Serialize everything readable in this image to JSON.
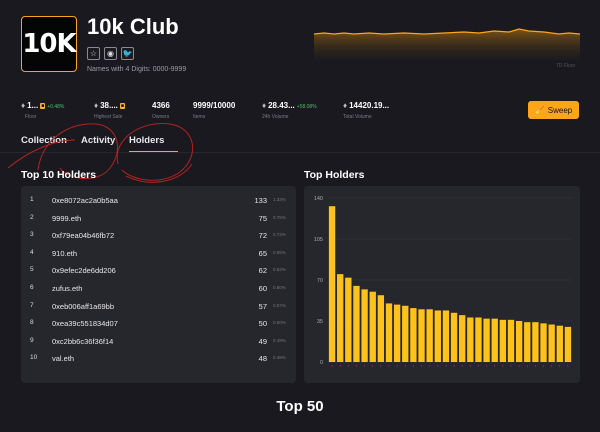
{
  "collection": {
    "logo_text": "10K",
    "title": "10k Club",
    "subtitle": "Names with 4 Digits: 0000-9999",
    "socials": [
      {
        "icon": "star-icon",
        "glyph": "☆"
      },
      {
        "icon": "discord-icon",
        "glyph": "◉"
      },
      {
        "icon": "twitter-icon",
        "glyph": "🐦"
      }
    ]
  },
  "header_chart": {
    "label": "7D Floor",
    "line_color": "#ffa51a"
  },
  "stats": [
    {
      "value": "1...",
      "label": "Floor",
      "change": "+0.48%",
      "icon": "eth-icon"
    },
    {
      "value": "38....",
      "label": "Highest Sale",
      "icon": "eth-icon"
    },
    {
      "value": "4366",
      "label": "Owners"
    },
    {
      "value": "9999/10000",
      "label": "Items"
    },
    {
      "value": "28.43...",
      "label": "24h Volume",
      "change": "+58.08%",
      "icon": "eth-icon"
    },
    {
      "value": "14420.19...",
      "label": "Total Volume",
      "icon": "eth-icon"
    }
  ],
  "sweep_label": "Sweep",
  "tabs": [
    "Collection",
    "Activity",
    "Holders"
  ],
  "active_tab": "Holders",
  "top_holders_title": "Top 10 Holders",
  "top_holders": [
    {
      "rank": "1",
      "address": "0xe8072ac2a0b5aa",
      "count": "133",
      "pct": "1.33%"
    },
    {
      "rank": "2",
      "address": "9999.eth",
      "count": "75",
      "pct": "0.75%"
    },
    {
      "rank": "3",
      "address": "0xf79ea04b46fb72",
      "count": "72",
      "pct": "0.72%"
    },
    {
      "rank": "4",
      "address": "910.eth",
      "count": "65",
      "pct": "0.65%"
    },
    {
      "rank": "5",
      "address": "0x9efec2de6dd206",
      "count": "62",
      "pct": "0.62%"
    },
    {
      "rank": "6",
      "address": "zufus.eth",
      "count": "60",
      "pct": "0.60%"
    },
    {
      "rank": "7",
      "address": "0xeb006aff1a69bb",
      "count": "57",
      "pct": "0.57%"
    },
    {
      "rank": "8",
      "address": "0xea39c551834d07",
      "count": "50",
      "pct": "0.50%"
    },
    {
      "rank": "9",
      "address": "0xc2bb6c36f36f14",
      "count": "49",
      "pct": "0.49%"
    },
    {
      "rank": "10",
      "address": "val.eth",
      "count": "48",
      "pct": "0.48%"
    }
  ],
  "top_holders_chart_title": "Top Holders",
  "bottom_title": "Top 50",
  "chart_data": {
    "type": "bar",
    "title": "Top Holders",
    "xlabel": "",
    "ylabel": "",
    "yticks": [
      0,
      35,
      70,
      105,
      140
    ],
    "ylim": [
      0,
      140
    ],
    "values": [
      133,
      75,
      72,
      65,
      62,
      60,
      57,
      50,
      49,
      48,
      46,
      45,
      45,
      44,
      44,
      42,
      40,
      38,
      38,
      37,
      37,
      36,
      36,
      35,
      34,
      34,
      33,
      32,
      31,
      30
    ],
    "bar_color": "#ffc21a",
    "grid": true
  }
}
